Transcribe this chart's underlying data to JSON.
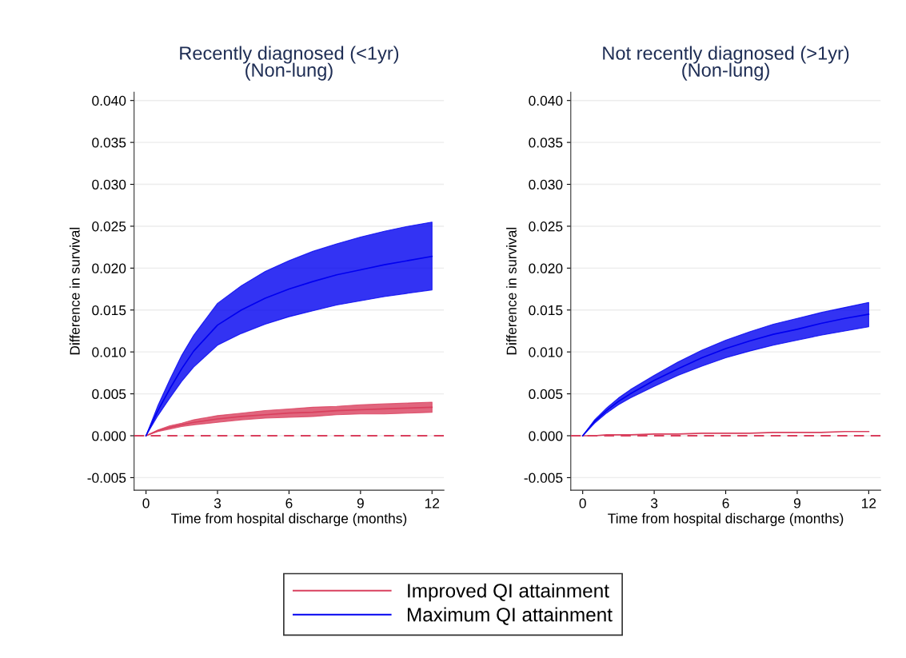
{
  "chart_data": [
    {
      "type": "line",
      "title": "Recently diagnosed (<1yr)\n(Non-lung)",
      "xlabel": "Time from hospital discharge (months)",
      "ylabel": "Difference in survival",
      "x": [
        0,
        0.5,
        1,
        1.5,
        2,
        3,
        4,
        5,
        6,
        7,
        8,
        9,
        10,
        11,
        12
      ],
      "series": [
        {
          "name": "Improved QI attainment",
          "color": "#d9405e",
          "values": [
            0,
            0.0006,
            0.001,
            0.0013,
            0.0016,
            0.002,
            0.0023,
            0.0025,
            0.0027,
            0.0028,
            0.003,
            0.0031,
            0.0032,
            0.0033,
            0.0034
          ],
          "lower": [
            0,
            0.0005,
            0.0008,
            0.0011,
            0.0013,
            0.0016,
            0.0019,
            0.0021,
            0.0022,
            0.0023,
            0.0025,
            0.0026,
            0.0026,
            0.0027,
            0.0028
          ],
          "upper": [
            0,
            0.0007,
            0.0012,
            0.0015,
            0.0019,
            0.0024,
            0.0027,
            0.003,
            0.0032,
            0.0034,
            0.0035,
            0.0037,
            0.0038,
            0.0039,
            0.004
          ]
        },
        {
          "name": "Maximum QI attainment",
          "color": "#0000f0",
          "values": [
            0,
            0.003,
            0.0056,
            0.008,
            0.0101,
            0.0132,
            0.015,
            0.0164,
            0.0175,
            0.0184,
            0.0192,
            0.0198,
            0.0204,
            0.0209,
            0.0214
          ],
          "lower": [
            0,
            0.0024,
            0.0045,
            0.0065,
            0.0082,
            0.0108,
            0.0122,
            0.0133,
            0.0142,
            0.0149,
            0.0156,
            0.0161,
            0.0166,
            0.017,
            0.0174
          ],
          "upper": [
            0,
            0.0036,
            0.0067,
            0.0096,
            0.012,
            0.0158,
            0.0179,
            0.0196,
            0.0209,
            0.022,
            0.0229,
            0.0237,
            0.0244,
            0.025,
            0.0255
          ]
        }
      ],
      "ref_lines": [
        {
          "axis": "y",
          "value": 0,
          "color": "#d9405e",
          "line_style": "dashed"
        }
      ],
      "xlim": [
        -0.5,
        12.5
      ],
      "xticks": [
        0,
        3,
        6,
        9,
        12
      ],
      "ylim": [
        -0.0065,
        0.041
      ],
      "yticks": [
        {
          "value": -0.005,
          "label": "-0.005"
        },
        {
          "value": 0,
          "label": "0.000"
        },
        {
          "value": 0.005,
          "label": "0.005"
        },
        {
          "value": 0.01,
          "label": "0.010"
        },
        {
          "value": 0.015,
          "label": "0.015"
        },
        {
          "value": 0.02,
          "label": "0.020"
        },
        {
          "value": 0.025,
          "label": "0.025"
        },
        {
          "value": 0.03,
          "label": "0.030"
        },
        {
          "value": 0.035,
          "label": "0.035"
        },
        {
          "value": 0.04,
          "label": "0.040"
        }
      ],
      "grid": "y",
      "legend": "bottom",
      "marker": "none",
      "line_style": "solid"
    },
    {
      "type": "line",
      "title": "Not recently diagnosed (>1yr)\n(Non-lung)",
      "xlabel": "Time from hospital discharge (months)",
      "ylabel": "Difference in survival",
      "x": [
        0,
        0.5,
        1,
        1.5,
        2,
        3,
        4,
        5,
        6,
        7,
        8,
        9,
        10,
        11,
        12
      ],
      "series": [
        {
          "color": "#d9405e",
          "values": [
            0,
            0,
            0.0001,
            0.0001,
            0.0001,
            0.0002,
            0.0002,
            0.0003,
            0.0003,
            0.0003,
            0.0004,
            0.0004,
            0.0004,
            0.0005,
            0.0005
          ]
        },
        {
          "color": "#0000f0",
          "values": [
            0,
            0.0017,
            0.003,
            0.0041,
            0.005,
            0.0066,
            0.008,
            0.0093,
            0.0104,
            0.0113,
            0.0121,
            0.0127,
            0.0134,
            0.014,
            0.0145
          ],
          "lower": [
            0,
            0.0015,
            0.0027,
            0.0037,
            0.0045,
            0.0059,
            0.0072,
            0.0083,
            0.0093,
            0.0101,
            0.0108,
            0.0114,
            0.012,
            0.0125,
            0.013
          ],
          "upper": [
            0,
            0.0019,
            0.0033,
            0.0045,
            0.0055,
            0.0072,
            0.0088,
            0.0102,
            0.0114,
            0.0124,
            0.0133,
            0.014,
            0.0147,
            0.0153,
            0.0159
          ]
        }
      ],
      "ref_lines": [
        {
          "axis": "y",
          "value": 0,
          "color": "#d9405e",
          "line_style": "dashed"
        }
      ],
      "xlim": [
        -0.5,
        12.5
      ],
      "xticks": [
        0,
        3,
        6,
        9,
        12
      ],
      "ylim": [
        -0.0065,
        0.041
      ],
      "yticks": [
        {
          "value": -0.005,
          "label": "-0.005"
        },
        {
          "value": 0,
          "label": "0.000"
        },
        {
          "value": 0.005,
          "label": "0.005"
        },
        {
          "value": 0.01,
          "label": "0.010"
        },
        {
          "value": 0.015,
          "label": "0.015"
        },
        {
          "value": 0.02,
          "label": "0.020"
        },
        {
          "value": 0.025,
          "label": "0.025"
        },
        {
          "value": 0.03,
          "label": "0.030"
        },
        {
          "value": 0.035,
          "label": "0.035"
        },
        {
          "value": 0.04,
          "label": "0.040"
        }
      ],
      "grid": "y",
      "marker": "none",
      "line_style": "solid"
    }
  ]
}
